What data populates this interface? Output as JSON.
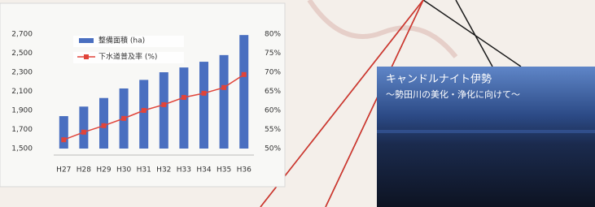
{
  "chart_data": {
    "type": "bar",
    "categories": [
      "H27",
      "H28",
      "H29",
      "H30",
      "H31",
      "H32",
      "H33",
      "H34",
      "H35",
      "H36"
    ],
    "series": [
      {
        "name": "整備面積 (ha)",
        "type": "bar",
        "color": "#4a6fc0",
        "values": [
          1840,
          1940,
          2030,
          2130,
          2220,
          2300,
          2350,
          2410,
          2480,
          2690
        ]
      },
      {
        "name": "下水道普及率 (%)",
        "type": "line",
        "axis": "y2",
        "color": "#e0443a",
        "values": [
          52.3,
          54.3,
          56,
          57.9,
          60,
          61.5,
          63.4,
          64.5,
          66,
          69.4
        ]
      }
    ],
    "ylim": [
      1500,
      2700
    ],
    "yticks": [
      {
        "value": 1500,
        "label": "1,500"
      },
      {
        "value": 1700,
        "label": "1,700"
      },
      {
        "value": 1900,
        "label": "1,900"
      },
      {
        "value": 2100,
        "label": "2,100"
      },
      {
        "value": 2300,
        "label": "2,300"
      },
      {
        "value": 2500,
        "label": "2,500"
      },
      {
        "value": 2700,
        "label": "2,700"
      }
    ],
    "y2lim": [
      50,
      80
    ],
    "y2ticks": [
      {
        "value": 50,
        "label": "50%"
      },
      {
        "value": 55,
        "label": "55%"
      },
      {
        "value": 60,
        "label": "60%"
      },
      {
        "value": 65,
        "label": "65%"
      },
      {
        "value": 70,
        "label": "70%"
      },
      {
        "value": 75,
        "label": "75%"
      },
      {
        "value": 80,
        "label": "80%"
      }
    ],
    "grid": false
  },
  "photo": {
    "title": "キャンドルナイト伊勢",
    "subtitle": "～勢田川の美化・浄化に向けて～"
  }
}
